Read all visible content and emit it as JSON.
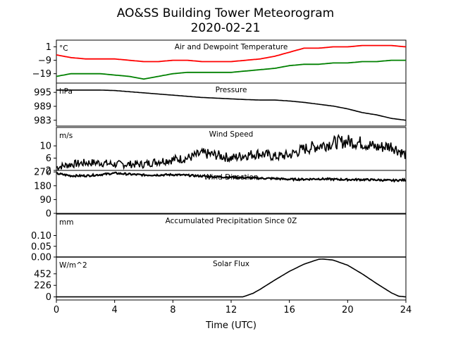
{
  "chart_data": {
    "type": "line",
    "title": "AO&SS Building Tower Meteorogram",
    "subtitle": "2020-02-21",
    "xlabel": "Time (UTC)",
    "xlim": [
      0,
      24
    ],
    "xticks": [
      "0",
      "4",
      "8",
      "12",
      "16",
      "20",
      "24"
    ],
    "panels": [
      {
        "title": "Air and Dewpoint Temperature",
        "units": "°C",
        "ylim": [
          -26,
          6
        ],
        "yticks": [
          1,
          -9,
          -19
        ],
        "ytick_labels": [
          "1",
          "−9",
          "−19"
        ],
        "series": [
          {
            "color": "#ff0000",
            "x": [
              0,
              1,
              2,
              3,
              4,
              5,
              6,
              7,
              8,
              9,
              10,
              11,
              12,
              13,
              14,
              15,
              16,
              17,
              18,
              19,
              20,
              21,
              22,
              23,
              24
            ],
            "values": [
              -5,
              -7,
              -8,
              -8,
              -8,
              -9,
              -10,
              -10,
              -9,
              -9,
              -10,
              -10,
              -10,
              -9,
              -8,
              -6,
              -3,
              0,
              0,
              1,
              1,
              2,
              2,
              2,
              1
            ]
          },
          {
            "color": "#008000",
            "x": [
              0,
              1,
              2,
              3,
              4,
              5,
              6,
              7,
              8,
              9,
              10,
              11,
              12,
              13,
              14,
              15,
              16,
              17,
              18,
              19,
              20,
              21,
              22,
              23,
              24
            ],
            "values": [
              -21,
              -19,
              -19,
              -19,
              -20,
              -21,
              -23,
              -21,
              -19,
              -18,
              -18,
              -18,
              -18,
              -17,
              -16,
              -15,
              -13,
              -12,
              -12,
              -11,
              -11,
              -10,
              -10,
              -9,
              -9
            ]
          }
        ]
      },
      {
        "title": "Pressure",
        "units": "hPa",
        "ylim": [
          980.5,
          999
        ],
        "yticks": [
          995,
          989,
          983
        ],
        "ytick_labels": [
          "995",
          "989",
          "983"
        ],
        "series": [
          {
            "color": "#000000",
            "x": [
              0,
              1,
              2,
              3,
              4,
              5,
              6,
              7,
              8,
              9,
              10,
              11,
              12,
              13,
              14,
              15,
              16,
              17,
              18,
              19,
              20,
              21,
              22,
              23,
              24
            ],
            "values": [
              996,
              996,
              996,
              996,
              995.8,
              995.3,
              994.8,
              994.3,
              993.8,
              993.3,
              992.8,
              992.5,
              992.2,
              991.9,
              991.7,
              991.7,
              991.3,
              990.7,
              989.9,
              989.1,
              987.9,
              986.3,
              985.3,
              983.8,
              983.0
            ]
          }
        ]
      },
      {
        "title": "Wind Speed",
        "units": "m/s",
        "ylim": [
          2,
          16
        ],
        "yticks": [
          10,
          6,
          2
        ],
        "ytick_labels": [
          "10",
          "6",
          "2"
        ],
        "series": [
          {
            "color": "#000000",
            "x": [
              0,
              1,
              2,
              3,
              4,
              5,
              6,
              7,
              8,
              9,
              10,
              11,
              12,
              13,
              14,
              15,
              16,
              17,
              18,
              19,
              20,
              21,
              22,
              23,
              24
            ],
            "values": [
              3,
              4,
              4.5,
              4.5,
              4,
              4,
              4,
              5,
              5.5,
              6,
              7.5,
              7,
              6,
              7,
              7.5,
              6.5,
              7,
              9,
              10,
              11,
              11.5,
              11,
              9.5,
              10,
              7
            ]
          }
        ]
      },
      {
        "title": "Wind Direction",
        "units": "",
        "ylim": [
          0,
          280
        ],
        "yticks": [
          270,
          180,
          90,
          0
        ],
        "ytick_labels": [
          "270",
          "180",
          "90",
          "0"
        ],
        "series": [
          {
            "color": "#000000",
            "x": [
              0,
              1,
              2,
              3,
              4,
              5,
              6,
              7,
              8,
              9,
              10,
              11,
              12,
              13,
              14,
              15,
              16,
              17,
              18,
              19,
              20,
              21,
              22,
              23,
              24
            ],
            "values": [
              260,
              245,
              245,
              252,
              262,
              255,
              250,
              250,
              252,
              248,
              243,
              238,
              236,
              232,
              229,
              227,
              222,
              222,
              225,
              222,
              220,
              220,
              218,
              214,
              218
            ]
          }
        ]
      },
      {
        "title": "Accumulated Precipitation Since 0Z",
        "units": "mm",
        "ylim": [
          0,
          0.2
        ],
        "yticks": [
          0.1,
          0.05,
          0.0
        ],
        "ytick_labels": [
          "0.10",
          "0.05",
          "0.00"
        ],
        "series": [
          {
            "color": "#000000",
            "x": [
              0,
              24
            ],
            "values": [
              0,
              0
            ]
          }
        ]
      },
      {
        "title": "Solar Flux",
        "units": "W/m^2",
        "ylim": [
          -60,
          780
        ],
        "yticks": [
          452,
          226,
          0
        ],
        "ytick_labels": [
          "452",
          "226",
          "0"
        ],
        "series": [
          {
            "color": "#000000",
            "x": [
              0,
              12,
              12.8,
              13,
              13.5,
              14,
              15,
              16,
              17,
              18,
              18.3,
              19,
              20,
              21,
              22,
              23,
              23.5,
              24
            ],
            "values": [
              0,
              0,
              0,
              20,
              70,
              150,
              330,
              500,
              640,
              735,
              740,
              720,
              620,
              450,
              260,
              80,
              15,
              0
            ]
          }
        ]
      }
    ]
  }
}
